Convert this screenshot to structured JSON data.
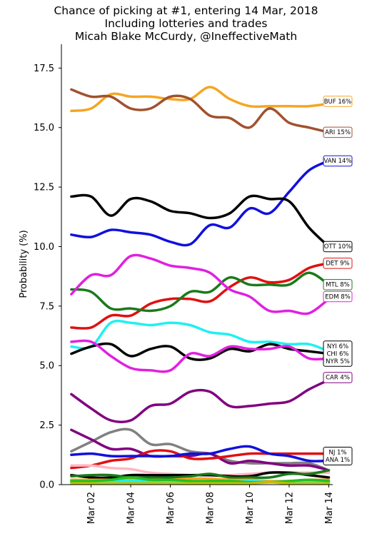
{
  "chart_data": {
    "type": "line",
    "title": "Chance of picking at #1, entering 14 Mar, 2018",
    "subtitle": "Including lotteries and trades",
    "credit": "Micah Blake McCurdy, @IneffectiveMath",
    "xlabel": "",
    "ylabel": "Probability (%)",
    "ylim": [
      0,
      18.5
    ],
    "xlim": [
      0.5,
      14.2
    ],
    "yticks": [
      0.0,
      2.5,
      5.0,
      7.5,
      10.0,
      12.5,
      15.0,
      17.5
    ],
    "ytick_labels": [
      "0.0",
      "2.5",
      "5.0",
      "7.5",
      "10.0",
      "12.5",
      "15.0",
      "17.5"
    ],
    "xticks": [
      2,
      4,
      6,
      8,
      10,
      12,
      14
    ],
    "xtick_labels": [
      "Mar 02",
      "Mar 04",
      "Mar 06",
      "Mar 08",
      "Mar 10",
      "Mar 12",
      "Mar 14"
    ],
    "grid": false,
    "x": [
      1,
      2,
      3,
      4,
      5,
      6,
      7,
      8,
      9,
      10,
      11,
      12,
      13,
      14
    ],
    "series": [
      {
        "color": "#f5a623",
        "values": [
          15.7,
          15.8,
          16.4,
          16.3,
          16.3,
          16.2,
          16.2,
          16.7,
          16.2,
          15.9,
          15.9,
          15.9,
          15.9,
          16.0
        ]
      },
      {
        "color": "#a0522d",
        "values": [
          16.6,
          16.3,
          16.3,
          15.8,
          15.8,
          16.3,
          16.2,
          15.5,
          15.4,
          15.0,
          15.8,
          15.2,
          15.0,
          14.8
        ]
      },
      {
        "color": "#1010dd",
        "values": [
          10.5,
          10.4,
          10.7,
          10.6,
          10.5,
          10.2,
          10.1,
          10.9,
          10.8,
          11.6,
          11.4,
          12.3,
          13.2,
          13.6
        ]
      },
      {
        "color": "#000000",
        "values": [
          12.1,
          12.1,
          11.3,
          12.0,
          11.9,
          11.5,
          11.4,
          11.2,
          11.4,
          12.1,
          12.0,
          11.9,
          10.8,
          10.0
        ]
      },
      {
        "color": "#e01010",
        "values": [
          6.6,
          6.6,
          7.1,
          7.1,
          7.6,
          7.8,
          7.8,
          7.7,
          8.3,
          8.7,
          8.5,
          8.6,
          9.1,
          9.3
        ]
      },
      {
        "color": "#1a7a1a",
        "values": [
          8.2,
          8.1,
          7.4,
          7.4,
          7.3,
          7.5,
          8.1,
          8.1,
          8.7,
          8.4,
          8.4,
          8.4,
          8.9,
          8.4
        ]
      },
      {
        "color": "#e020e0",
        "values": [
          8.0,
          8.8,
          8.8,
          9.6,
          9.5,
          9.2,
          9.1,
          8.9,
          8.2,
          7.9,
          7.3,
          7.3,
          7.2,
          7.8
        ]
      },
      {
        "color": "#20f0f0",
        "values": [
          5.8,
          5.8,
          6.8,
          6.8,
          6.7,
          6.8,
          6.7,
          6.4,
          6.3,
          6.0,
          6.0,
          5.9,
          5.9,
          5.6
        ]
      },
      {
        "color": "#000000",
        "values": [
          5.5,
          5.8,
          5.9,
          5.4,
          5.7,
          5.8,
          5.3,
          5.3,
          5.7,
          5.6,
          5.9,
          5.7,
          5.6,
          5.5
        ]
      },
      {
        "color": "#e020e0",
        "values": [
          6.0,
          6.0,
          5.4,
          4.9,
          4.8,
          4.8,
          5.5,
          5.4,
          5.8,
          5.7,
          5.7,
          5.8,
          5.3,
          5.3
        ]
      },
      {
        "color": "#800080",
        "values": [
          3.8,
          3.2,
          2.7,
          2.7,
          3.3,
          3.4,
          3.9,
          3.9,
          3.3,
          3.3,
          3.4,
          3.5,
          4.0,
          4.4
        ]
      },
      {
        "color": "#808080",
        "values": [
          1.4,
          1.8,
          2.2,
          2.3,
          1.7,
          1.7,
          1.4,
          1.3,
          1.0,
          0.9,
          0.9,
          0.9,
          0.9,
          0.6
        ]
      },
      {
        "color": "#800080",
        "values": [
          2.3,
          1.9,
          1.5,
          1.5,
          1.2,
          1.2,
          1.2,
          1.3,
          0.9,
          1.0,
          0.9,
          0.8,
          0.8,
          0.6
        ]
      },
      {
        "color": "#e01010",
        "values": [
          0.7,
          0.8,
          1.0,
          1.1,
          1.4,
          1.4,
          1.1,
          1.1,
          1.2,
          1.3,
          1.3,
          1.3,
          1.3,
          1.3
        ]
      },
      {
        "color": "#1010dd",
        "values": [
          1.25,
          1.3,
          1.2,
          1.2,
          1.2,
          1.2,
          1.3,
          1.3,
          1.5,
          1.6,
          1.3,
          1.2,
          1.0,
          1.0
        ]
      },
      {
        "color": "#ffb6c1",
        "values": [
          0.8,
          0.8,
          0.7,
          0.65,
          0.5,
          0.45,
          0.4,
          0.4,
          0.4,
          0.45,
          0.5,
          0.5,
          0.5,
          0.5
        ]
      },
      {
        "color": "#000000",
        "values": [
          0.4,
          0.3,
          0.3,
          0.4,
          0.4,
          0.4,
          0.4,
          0.4,
          0.35,
          0.35,
          0.5,
          0.5,
          0.4,
          0.3
        ]
      },
      {
        "color": "#1a7a1a",
        "values": [
          0.35,
          0.4,
          0.4,
          0.3,
          0.3,
          0.3,
          0.35,
          0.45,
          0.3,
          0.3,
          0.3,
          0.45,
          0.45,
          0.6
        ]
      },
      {
        "color": "#f5a623",
        "values": [
          0.2,
          0.2,
          0.2,
          0.2,
          0.2,
          0.2,
          0.25,
          0.25,
          0.2,
          0.2,
          0.15,
          0.15,
          0.2,
          0.2
        ]
      },
      {
        "color": "#20f0f0",
        "values": [
          0.1,
          0.1,
          0.15,
          0.15,
          0.15,
          0.1,
          0.1,
          0.1,
          0.1,
          0.15,
          0.1,
          0.1,
          0.1,
          0.1
        ]
      },
      {
        "color": "#22c022",
        "values": [
          0.15,
          0.15,
          0.2,
          0.3,
          0.2,
          0.2,
          0.15,
          0.15,
          0.15,
          0.1,
          0.1,
          0.15,
          0.2,
          0.15
        ]
      },
      {
        "color": "#c0c000",
        "values": [
          0.05,
          0.05,
          0.05,
          0.05,
          0.05,
          0.05,
          0.05,
          0.05,
          0.05,
          0.05,
          0.1,
          0.05,
          0.05,
          0.05
        ]
      }
    ],
    "end_labels": [
      {
        "lines": [
          "BUF 16%"
        ],
        "color": "#f5a623",
        "y": 16.1
      },
      {
        "lines": [
          "ARI 15%"
        ],
        "color": "#a0522d",
        "y": 14.8
      },
      {
        "lines": [
          "VAN 14%"
        ],
        "color": "#1010dd",
        "y": 13.6
      },
      {
        "lines": [
          "OTT 10%"
        ],
        "color": "#000000",
        "y": 10.0
      },
      {
        "lines": [
          "DET  9%"
        ],
        "color": "#e01010",
        "y": 9.3
      },
      {
        "lines": [
          "MTL  8%"
        ],
        "color": "#1a7a1a",
        "y": 8.4
      },
      {
        "lines": [
          "EDM  8%"
        ],
        "color": "#e020e0",
        "y": 7.9
      },
      {
        "lines": [
          "NYI  6%",
          "CHI  6%",
          "NYR  5%"
        ],
        "color": "#000000",
        "y": 5.5
      },
      {
        "lines": [
          "CAR  4%"
        ],
        "color": "#800080",
        "y": 4.5
      },
      {
        "lines": [
          "NJ  1%",
          "ANA  1%"
        ],
        "color": "#000000",
        "y": 1.2
      }
    ]
  }
}
